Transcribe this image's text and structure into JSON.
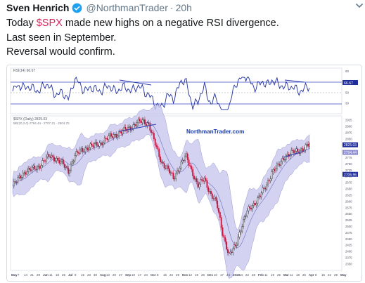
{
  "tweet": {
    "author": "Sven Henrich",
    "handle": "@NorthmanTrader",
    "separator": "·",
    "time": "20h",
    "lines_pre": "Today ",
    "cashtag": "$SPX",
    "line1_post": " made new highs on a negative RSI divergence.",
    "line2": "Last seen in September.",
    "line3": "Reversal would confirm."
  },
  "icons": {
    "verified": "verified-badge-icon",
    "menu": "chevron-down-icon"
  },
  "colors": {
    "cashtag": "#e0245e",
    "verified": "#1da1f2",
    "band_fill": "#c9c9ee",
    "trend_line": "#2c3bb0",
    "rsi_line": "#1f2e9c"
  },
  "chart_data": [
    {
      "type": "line",
      "title": "RSI(14) 66.67",
      "y_ticks": [
        "90",
        "70",
        "50",
        "30"
      ],
      "ylim": [
        10,
        95
      ],
      "last_value_label": "66.67",
      "reference_lines": [
        70,
        30
      ]
    },
    {
      "type": "candlestick",
      "title": "$SPX (Daily) 2825.03",
      "subtitle": "BB(20,2.0) 2794.44 - 2707.21 - 2604.75",
      "watermark": "NorthmanTrader.com",
      "y_ticks": [
        "2925",
        "2900",
        "2875",
        "2850",
        "2825",
        "2800",
        "2775",
        "2750",
        "2725",
        "2700",
        "2675",
        "2650",
        "2625",
        "2600",
        "2575",
        "2550",
        "2525",
        "2500",
        "2475",
        "2450",
        "2425",
        "2400",
        "2375",
        "2350"
      ],
      "ylim": [
        2340,
        2935
      ],
      "price_labels": [
        "2825.03",
        "2794.44",
        "2706.96"
      ],
      "x_ticks": [
        "May",
        "7",
        "14",
        "21",
        "29",
        "Jun",
        "11",
        "18",
        "25",
        "Jul",
        "9",
        "16",
        "23",
        "30",
        "Aug",
        "13",
        "20",
        "27",
        "Sep",
        "10",
        "17",
        "24",
        "Oct",
        "8",
        "15",
        "22",
        "29",
        "Nov",
        "12",
        "19",
        "26",
        "Dec",
        "10",
        "17",
        "24",
        "2019",
        "14",
        "22",
        "28",
        "Feb",
        "11",
        "19",
        "25",
        "Mar",
        "11",
        "18",
        "25",
        "Apr",
        "8",
        "15",
        "22",
        "29",
        "May"
      ],
      "closes": [
        2660,
        2690,
        2720,
        2725,
        2735,
        2760,
        2780,
        2770,
        2750,
        2720,
        2780,
        2800,
        2815,
        2820,
        2830,
        2845,
        2860,
        2870,
        2880,
        2895,
        2910,
        2920,
        2910,
        2830,
        2760,
        2730,
        2690,
        2740,
        2780,
        2720,
        2660,
        2690,
        2630,
        2590,
        2470,
        2380,
        2420,
        2500,
        2560,
        2590,
        2620,
        2660,
        2720,
        2740,
        2780,
        2790,
        2800,
        2810,
        2825
      ]
    }
  ]
}
